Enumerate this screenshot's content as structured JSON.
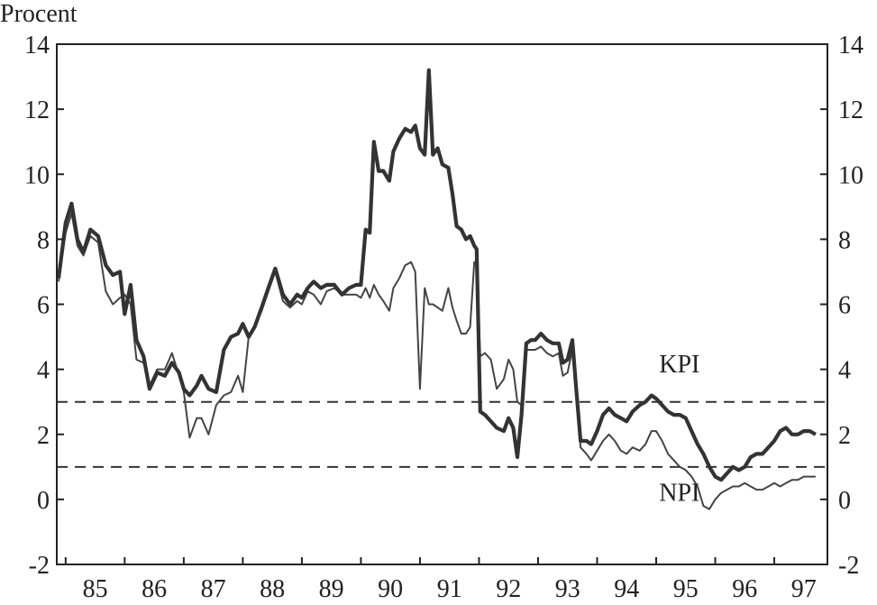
{
  "chart_data": {
    "type": "line",
    "ylabel": "Procent",
    "ylim": [
      -2,
      14
    ],
    "yticks": [
      -2,
      0,
      2,
      4,
      6,
      8,
      10,
      12,
      14
    ],
    "xlim": [
      1984.85,
      1997.9
    ],
    "xtick_labels": [
      "85",
      "86",
      "87",
      "88",
      "89",
      "90",
      "91",
      "92",
      "93",
      "94",
      "95",
      "96",
      "97"
    ],
    "grid": false,
    "reference_lines": [
      {
        "value": 3,
        "style": "dashed"
      },
      {
        "value": 1,
        "style": "dashed"
      }
    ],
    "annotations": [
      {
        "text": "KPI",
        "x": 1995.05,
        "y": 3.9
      },
      {
        "text": "NPI",
        "x": 1995.05,
        "y": -0.05
      }
    ],
    "series": [
      {
        "name": "KPI",
        "style": "thick",
        "points": [
          [
            1984.88,
            6.8
          ],
          [
            1985.0,
            8.5
          ],
          [
            1985.1,
            9.1
          ],
          [
            1985.2,
            8.0
          ],
          [
            1985.3,
            7.6
          ],
          [
            1985.42,
            8.3
          ],
          [
            1985.55,
            8.1
          ],
          [
            1985.68,
            7.2
          ],
          [
            1985.8,
            6.9
          ],
          [
            1985.92,
            7.0
          ],
          [
            1986.0,
            5.7
          ],
          [
            1986.1,
            6.6
          ],
          [
            1986.2,
            4.9
          ],
          [
            1986.32,
            4.4
          ],
          [
            1986.42,
            3.4
          ],
          [
            1986.55,
            3.9
          ],
          [
            1986.68,
            3.8
          ],
          [
            1986.8,
            4.2
          ],
          [
            1986.92,
            3.9
          ],
          [
            1987.0,
            3.4
          ],
          [
            1987.1,
            3.2
          ],
          [
            1987.22,
            3.5
          ],
          [
            1987.3,
            3.8
          ],
          [
            1987.42,
            3.4
          ],
          [
            1987.55,
            3.3
          ],
          [
            1987.68,
            4.6
          ],
          [
            1987.8,
            5.0
          ],
          [
            1987.92,
            5.1
          ],
          [
            1988.0,
            5.4
          ],
          [
            1988.1,
            5.0
          ],
          [
            1988.2,
            5.3
          ],
          [
            1988.32,
            5.9
          ],
          [
            1988.45,
            6.6
          ],
          [
            1988.55,
            7.1
          ],
          [
            1988.68,
            6.3
          ],
          [
            1988.8,
            6.0
          ],
          [
            1988.92,
            6.3
          ],
          [
            1989.0,
            6.2
          ],
          [
            1989.1,
            6.5
          ],
          [
            1989.2,
            6.7
          ],
          [
            1989.32,
            6.5
          ],
          [
            1989.42,
            6.6
          ],
          [
            1989.55,
            6.6
          ],
          [
            1989.68,
            6.3
          ],
          [
            1989.8,
            6.5
          ],
          [
            1989.92,
            6.6
          ],
          [
            1990.0,
            6.6
          ],
          [
            1990.08,
            8.3
          ],
          [
            1990.15,
            8.2
          ],
          [
            1990.22,
            11.0
          ],
          [
            1990.3,
            10.1
          ],
          [
            1990.38,
            10.1
          ],
          [
            1990.48,
            9.8
          ],
          [
            1990.55,
            10.7
          ],
          [
            1990.65,
            11.1
          ],
          [
            1990.75,
            11.4
          ],
          [
            1990.85,
            11.3
          ],
          [
            1990.92,
            11.5
          ],
          [
            1991.0,
            10.8
          ],
          [
            1991.08,
            10.6
          ],
          [
            1991.15,
            13.2
          ],
          [
            1991.22,
            10.6
          ],
          [
            1991.3,
            10.8
          ],
          [
            1991.38,
            10.3
          ],
          [
            1991.48,
            10.2
          ],
          [
            1991.55,
            9.4
          ],
          [
            1991.62,
            8.4
          ],
          [
            1991.7,
            8.3
          ],
          [
            1991.78,
            8.0
          ],
          [
            1991.85,
            8.1
          ],
          [
            1991.92,
            7.8
          ],
          [
            1991.96,
            7.7
          ],
          [
            1992.02,
            2.7
          ],
          [
            1992.1,
            2.6
          ],
          [
            1992.2,
            2.4
          ],
          [
            1992.3,
            2.2
          ],
          [
            1992.42,
            2.1
          ],
          [
            1992.5,
            2.5
          ],
          [
            1992.58,
            2.2
          ],
          [
            1992.65,
            1.3
          ],
          [
            1992.72,
            2.6
          ],
          [
            1992.8,
            4.8
          ],
          [
            1992.88,
            4.9
          ],
          [
            1992.95,
            4.9
          ],
          [
            1993.05,
            5.1
          ],
          [
            1993.15,
            4.9
          ],
          [
            1993.25,
            4.8
          ],
          [
            1993.35,
            4.8
          ],
          [
            1993.42,
            4.2
          ],
          [
            1993.5,
            4.3
          ],
          [
            1993.58,
            4.9
          ],
          [
            1993.65,
            3.3
          ],
          [
            1993.72,
            1.8
          ],
          [
            1993.82,
            1.8
          ],
          [
            1993.9,
            1.7
          ],
          [
            1994.0,
            2.1
          ],
          [
            1994.1,
            2.6
          ],
          [
            1994.2,
            2.8
          ],
          [
            1994.3,
            2.6
          ],
          [
            1994.4,
            2.5
          ],
          [
            1994.5,
            2.4
          ],
          [
            1994.6,
            2.7
          ],
          [
            1994.72,
            2.9
          ],
          [
            1994.82,
            3.0
          ],
          [
            1994.92,
            3.2
          ],
          [
            1995.0,
            3.1
          ],
          [
            1995.1,
            2.9
          ],
          [
            1995.2,
            2.7
          ],
          [
            1995.3,
            2.6
          ],
          [
            1995.4,
            2.6
          ],
          [
            1995.5,
            2.5
          ],
          [
            1995.6,
            2.1
          ],
          [
            1995.7,
            1.7
          ],
          [
            1995.8,
            1.4
          ],
          [
            1995.9,
            1.0
          ],
          [
            1996.0,
            0.7
          ],
          [
            1996.1,
            0.6
          ],
          [
            1996.2,
            0.8
          ],
          [
            1996.3,
            1.0
          ],
          [
            1996.4,
            0.9
          ],
          [
            1996.5,
            1.0
          ],
          [
            1996.6,
            1.3
          ],
          [
            1996.7,
            1.4
          ],
          [
            1996.8,
            1.4
          ],
          [
            1996.9,
            1.6
          ],
          [
            1997.0,
            1.8
          ],
          [
            1997.1,
            2.1
          ],
          [
            1997.2,
            2.2
          ],
          [
            1997.3,
            2.0
          ],
          [
            1997.4,
            2.0
          ],
          [
            1997.5,
            2.1
          ],
          [
            1997.6,
            2.1
          ],
          [
            1997.7,
            2.0
          ]
        ]
      },
      {
        "name": "NPI",
        "style": "thin",
        "points": [
          [
            1984.88,
            6.7
          ],
          [
            1985.0,
            8.2
          ],
          [
            1985.1,
            8.8
          ],
          [
            1985.2,
            7.8
          ],
          [
            1985.3,
            7.5
          ],
          [
            1985.42,
            8.1
          ],
          [
            1985.55,
            7.9
          ],
          [
            1985.68,
            6.4
          ],
          [
            1985.8,
            6.0
          ],
          [
            1985.92,
            6.2
          ],
          [
            1986.0,
            6.3
          ],
          [
            1986.1,
            6.0
          ],
          [
            1986.2,
            4.3
          ],
          [
            1986.32,
            4.2
          ],
          [
            1986.42,
            3.5
          ],
          [
            1986.55,
            4.0
          ],
          [
            1986.68,
            4.0
          ],
          [
            1986.8,
            4.5
          ],
          [
            1986.92,
            3.8
          ],
          [
            1987.0,
            3.3
          ],
          [
            1987.1,
            1.9
          ],
          [
            1987.22,
            2.5
          ],
          [
            1987.3,
            2.5
          ],
          [
            1987.42,
            2.0
          ],
          [
            1987.55,
            2.9
          ],
          [
            1987.68,
            3.2
          ],
          [
            1987.8,
            3.3
          ],
          [
            1987.92,
            3.8
          ],
          [
            1988.0,
            3.3
          ],
          [
            1988.1,
            5.0
          ],
          [
            1988.2,
            5.3
          ],
          [
            1988.32,
            5.8
          ],
          [
            1988.45,
            6.5
          ],
          [
            1988.55,
            7.0
          ],
          [
            1988.68,
            6.1
          ],
          [
            1988.8,
            5.9
          ],
          [
            1988.92,
            6.1
          ],
          [
            1989.0,
            6.0
          ],
          [
            1989.1,
            6.4
          ],
          [
            1989.2,
            6.3
          ],
          [
            1989.32,
            6.0
          ],
          [
            1989.42,
            6.4
          ],
          [
            1989.55,
            6.5
          ],
          [
            1989.68,
            6.3
          ],
          [
            1989.8,
            6.3
          ],
          [
            1989.92,
            6.3
          ],
          [
            1990.0,
            6.2
          ],
          [
            1990.08,
            6.5
          ],
          [
            1990.15,
            6.2
          ],
          [
            1990.22,
            6.6
          ],
          [
            1990.3,
            6.3
          ],
          [
            1990.38,
            6.1
          ],
          [
            1990.48,
            5.8
          ],
          [
            1990.55,
            6.5
          ],
          [
            1990.65,
            6.8
          ],
          [
            1990.75,
            7.2
          ],
          [
            1990.85,
            7.3
          ],
          [
            1990.92,
            7.0
          ],
          [
            1991.0,
            3.4
          ],
          [
            1991.08,
            6.5
          ],
          [
            1991.15,
            6.0
          ],
          [
            1991.22,
            6.0
          ],
          [
            1991.3,
            5.9
          ],
          [
            1991.38,
            5.8
          ],
          [
            1991.48,
            6.5
          ],
          [
            1991.55,
            5.9
          ],
          [
            1991.62,
            5.5
          ],
          [
            1991.7,
            5.1
          ],
          [
            1991.78,
            5.1
          ],
          [
            1991.85,
            5.3
          ],
          [
            1991.92,
            7.3
          ],
          [
            1991.96,
            7.2
          ],
          [
            1992.02,
            4.4
          ],
          [
            1992.1,
            4.5
          ],
          [
            1992.2,
            4.3
          ],
          [
            1992.3,
            3.4
          ],
          [
            1992.42,
            3.7
          ],
          [
            1992.5,
            4.3
          ],
          [
            1992.58,
            4.0
          ],
          [
            1992.65,
            3.0
          ],
          [
            1992.72,
            2.9
          ],
          [
            1992.8,
            4.6
          ],
          [
            1992.88,
            4.6
          ],
          [
            1992.95,
            4.6
          ],
          [
            1993.05,
            4.7
          ],
          [
            1993.15,
            4.5
          ],
          [
            1993.25,
            4.4
          ],
          [
            1993.35,
            4.5
          ],
          [
            1993.42,
            3.8
          ],
          [
            1993.5,
            3.9
          ],
          [
            1993.58,
            4.6
          ],
          [
            1993.65,
            3.1
          ],
          [
            1993.72,
            1.6
          ],
          [
            1993.82,
            1.4
          ],
          [
            1993.9,
            1.2
          ],
          [
            1994.0,
            1.5
          ],
          [
            1994.1,
            1.8
          ],
          [
            1994.2,
            2.0
          ],
          [
            1994.3,
            1.8
          ],
          [
            1994.4,
            1.5
          ],
          [
            1994.5,
            1.4
          ],
          [
            1994.6,
            1.6
          ],
          [
            1994.72,
            1.5
          ],
          [
            1994.82,
            1.7
          ],
          [
            1994.92,
            2.1
          ],
          [
            1995.0,
            2.1
          ],
          [
            1995.1,
            1.8
          ],
          [
            1995.2,
            1.4
          ],
          [
            1995.3,
            1.2
          ],
          [
            1995.4,
            1.0
          ],
          [
            1995.5,
            0.9
          ],
          [
            1995.6,
            0.7
          ],
          [
            1995.7,
            0.4
          ],
          [
            1995.8,
            -0.2
          ],
          [
            1995.9,
            -0.3
          ],
          [
            1996.0,
            0.0
          ],
          [
            1996.1,
            0.2
          ],
          [
            1996.2,
            0.3
          ],
          [
            1996.3,
            0.4
          ],
          [
            1996.4,
            0.4
          ],
          [
            1996.5,
            0.5
          ],
          [
            1996.6,
            0.4
          ],
          [
            1996.7,
            0.3
          ],
          [
            1996.8,
            0.3
          ],
          [
            1996.9,
            0.4
          ],
          [
            1997.0,
            0.5
          ],
          [
            1997.1,
            0.4
          ],
          [
            1997.2,
            0.5
          ],
          [
            1997.3,
            0.6
          ],
          [
            1997.4,
            0.6
          ],
          [
            1997.5,
            0.7
          ],
          [
            1997.6,
            0.7
          ],
          [
            1997.7,
            0.7
          ]
        ]
      }
    ],
    "colors": {
      "axis": "#222222",
      "kpi": "#333333",
      "npi": "#444444",
      "reference": "#333333"
    }
  }
}
